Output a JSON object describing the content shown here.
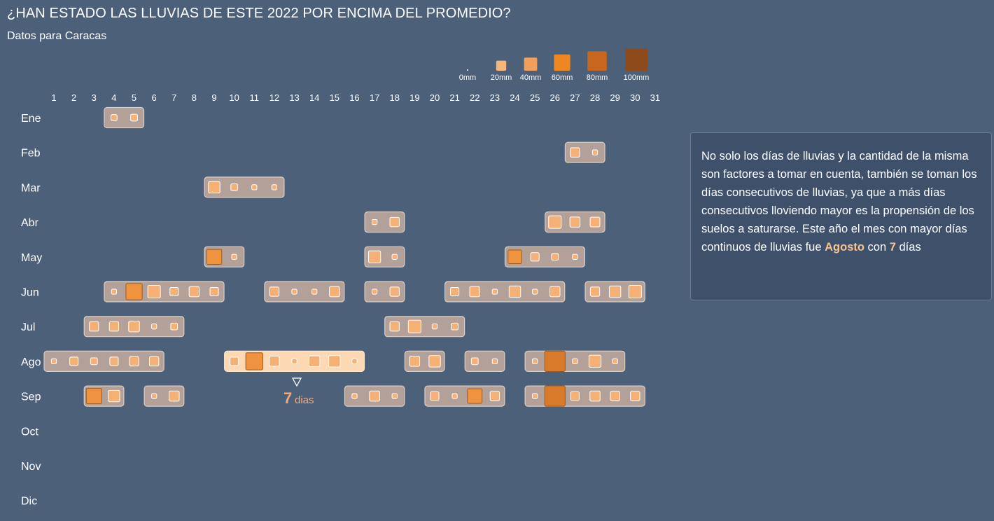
{
  "title": "¿HAN ESTADO LAS LLUVIAS DE ESTE 2022 POR ENCIMA DEL PROMEDIO?",
  "subtitle": "Datos para Caracas",
  "note": {
    "text_before": "No solo los días de lluvias y la cantidad de la misma son factores a tomar en cuenta, también se toman los días consecutivos de lluvias, ya que a más días consecutivos lloviendo mayor es la propensión de los suelos a saturarse. Este año el mes con mayor días continuos de lluvias fue ",
    "highlight_month": "Agosto",
    "text_mid": " con ",
    "highlight_days": "7",
    "text_after": " días"
  },
  "annotation": {
    "number": "7",
    "unit": "dias"
  },
  "colors": {
    "background": "#4d6079",
    "run_fill": "#b3a199",
    "run_fill_max": "#fcd9b4",
    "square_light": "#f5b075",
    "square_mid": "#f0933f",
    "square_dark": "#d9792a",
    "legend": [
      "#f5b57b",
      "#f0a05a",
      "#ee8622",
      "#c8661d",
      "#8e4a1a"
    ]
  },
  "chart_data": {
    "type": "heatmap",
    "x_categories": [
      "1",
      "2",
      "3",
      "4",
      "5",
      "6",
      "7",
      "8",
      "9",
      "10",
      "11",
      "12",
      "13",
      "14",
      "15",
      "16",
      "17",
      "18",
      "19",
      "20",
      "21",
      "22",
      "23",
      "24",
      "25",
      "26",
      "27",
      "28",
      "29",
      "30",
      "31"
    ],
    "y_categories": [
      "Ene",
      "Feb",
      "Mar",
      "Abr",
      "May",
      "Jun",
      "Jul",
      "Ago",
      "Sep",
      "Oct",
      "Nov",
      "Dic"
    ],
    "legend": {
      "values": [
        0,
        20,
        40,
        60,
        80,
        100
      ],
      "labels": [
        "0mm",
        "20mm",
        "40mm",
        "60mm",
        "80mm",
        "100mm"
      ],
      "unit": "mm"
    },
    "runs": [
      {
        "month": "Ene",
        "start": 4,
        "mm": [
          2,
          3
        ]
      },
      {
        "month": "Feb",
        "start": 27,
        "mm": [
          8,
          1
        ]
      },
      {
        "month": "Mar",
        "start": 9,
        "mm": [
          14,
          3,
          1,
          1
        ]
      },
      {
        "month": "Abr",
        "start": 17,
        "mm": [
          1,
          8
        ]
      },
      {
        "month": "Abr",
        "start": 26,
        "mm": [
          18,
          10,
          9
        ]
      },
      {
        "month": "May",
        "start": 9,
        "mm": [
          28,
          1
        ]
      },
      {
        "month": "May",
        "start": 17,
        "mm": [
          16,
          1
        ]
      },
      {
        "month": "May",
        "start": 24,
        "mm": [
          22,
          6,
          3,
          1
        ]
      },
      {
        "month": "Jun",
        "start": 4,
        "mm": [
          1,
          34,
          18,
          6,
          10,
          6
        ]
      },
      {
        "month": "Jun",
        "start": 12,
        "mm": [
          8,
          1,
          1,
          10
        ]
      },
      {
        "month": "Jun",
        "start": 17,
        "mm": [
          1,
          8
        ]
      },
      {
        "month": "Jun",
        "start": 21,
        "mm": [
          6,
          10,
          1,
          14,
          1,
          10
        ]
      },
      {
        "month": "Jun",
        "start": 28,
        "mm": [
          8,
          14,
          18
        ]
      },
      {
        "month": "Jul",
        "start": 3,
        "mm": [
          8,
          8,
          12,
          1,
          3
        ]
      },
      {
        "month": "Jul",
        "start": 18,
        "mm": [
          8,
          18,
          1,
          3
        ]
      },
      {
        "month": "Ago",
        "start": 1,
        "mm": [
          1,
          6,
          3,
          6,
          8,
          8
        ]
      },
      {
        "month": "Ago",
        "start": 10,
        "mm": [
          6,
          38,
          10,
          1,
          12,
          14,
          1
        ]
      },
      {
        "month": "Ago",
        "start": 19,
        "mm": [
          10,
          14
        ]
      },
      {
        "month": "Ago",
        "start": 22,
        "mm": [
          3,
          1
        ]
      },
      {
        "month": "Ago",
        "start": 25,
        "mm": [
          1,
          58,
          1,
          16,
          1
        ]
      },
      {
        "month": "Sep",
        "start": 3,
        "mm": [
          30,
          14
        ]
      },
      {
        "month": "Sep",
        "start": 6,
        "mm": [
          1,
          10
        ]
      },
      {
        "month": "Sep",
        "start": 16,
        "mm": [
          1,
          10,
          1
        ]
      },
      {
        "month": "Sep",
        "start": 20,
        "mm": [
          6,
          1,
          26,
          8
        ]
      },
      {
        "month": "Sep",
        "start": 25,
        "mm": [
          1,
          58,
          6,
          10,
          8,
          8
        ]
      }
    ],
    "max_run": {
      "month": "Ago",
      "start": 10,
      "days": 7
    }
  }
}
